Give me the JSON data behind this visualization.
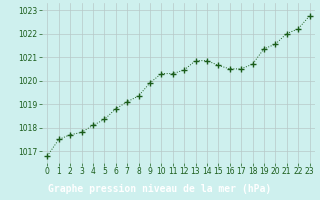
{
  "x": [
    0,
    1,
    2,
    3,
    4,
    5,
    6,
    7,
    8,
    9,
    10,
    11,
    12,
    13,
    14,
    15,
    16,
    17,
    18,
    19,
    20,
    21,
    22,
    23
  ],
  "y": [
    1016.8,
    1017.5,
    1017.7,
    1017.8,
    1018.1,
    1018.35,
    1018.8,
    1019.1,
    1019.35,
    1019.9,
    1020.3,
    1020.3,
    1020.45,
    1020.85,
    1020.85,
    1020.65,
    1020.5,
    1020.5,
    1020.7,
    1021.35,
    1021.55,
    1022.0,
    1022.2,
    1022.75
  ],
  "line_color": "#1a5c1a",
  "marker_color": "#1a5c1a",
  "bg_color": "#cef0ee",
  "grid_color": "#b8c8c8",
  "xlabel": "Graphe pression niveau de la mer (hPa)",
  "xlabel_bg": "#1a5c1a",
  "xlabel_text_color": "#ffffff",
  "tick_color": "#1a5c1a",
  "ylim": [
    1016.5,
    1023.3
  ],
  "yticks": [
    1017,
    1018,
    1019,
    1020,
    1021,
    1022,
    1023
  ],
  "xticks": [
    0,
    1,
    2,
    3,
    4,
    5,
    6,
    7,
    8,
    9,
    10,
    11,
    12,
    13,
    14,
    15,
    16,
    17,
    18,
    19,
    20,
    21,
    22,
    23
  ],
  "tick_fontsize": 5.5,
  "xlabel_fontsize": 7.0
}
